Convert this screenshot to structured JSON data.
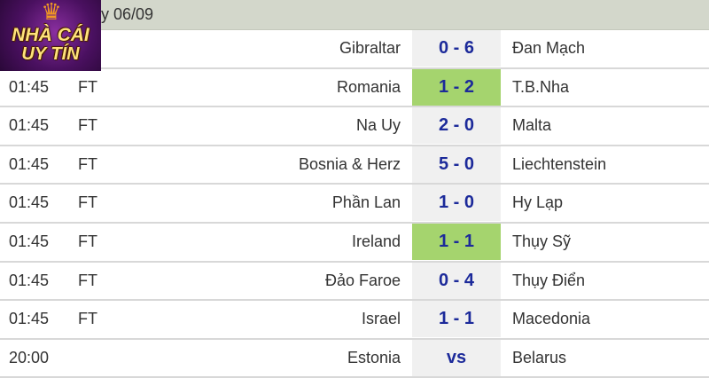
{
  "header": {
    "date_text": "y 06/09"
  },
  "logo": {
    "line1": "NHÀ CÁI",
    "line2": "UY TÍN"
  },
  "colors": {
    "header_bg": "#d3d7cb",
    "score_bg": "#f0f0f0",
    "highlight": "#a5d46e",
    "score_text": "#1c2a9a"
  },
  "matches": [
    {
      "time": "",
      "status": "",
      "home": "Gibraltar",
      "score": "0 - 6",
      "away": "Đan Mạch",
      "highlight": false
    },
    {
      "time": "01:45",
      "status": "FT",
      "home": "Romania",
      "score": "1 - 2",
      "away": "T.B.Nha",
      "highlight": true
    },
    {
      "time": "01:45",
      "status": "FT",
      "home": "Na Uy",
      "score": "2 - 0",
      "away": "Malta",
      "highlight": false
    },
    {
      "time": "01:45",
      "status": "FT",
      "home": "Bosnia & Herz",
      "score": "5 - 0",
      "away": "Liechtenstein",
      "highlight": false
    },
    {
      "time": "01:45",
      "status": "FT",
      "home": "Phần Lan",
      "score": "1 - 0",
      "away": "Hy Lạp",
      "highlight": false
    },
    {
      "time": "01:45",
      "status": "FT",
      "home": "Ireland",
      "score": "1 - 1",
      "away": "Thụy Sỹ",
      "highlight": true
    },
    {
      "time": "01:45",
      "status": "FT",
      "home": "Đảo Faroe",
      "score": "0 - 4",
      "away": "Thụy Điển",
      "highlight": false
    },
    {
      "time": "01:45",
      "status": "FT",
      "home": "Israel",
      "score": "1 - 1",
      "away": "Macedonia",
      "highlight": false
    },
    {
      "time": "20:00",
      "status": "",
      "home": "Estonia",
      "score": "vs",
      "away": "Belarus",
      "highlight": false
    }
  ]
}
